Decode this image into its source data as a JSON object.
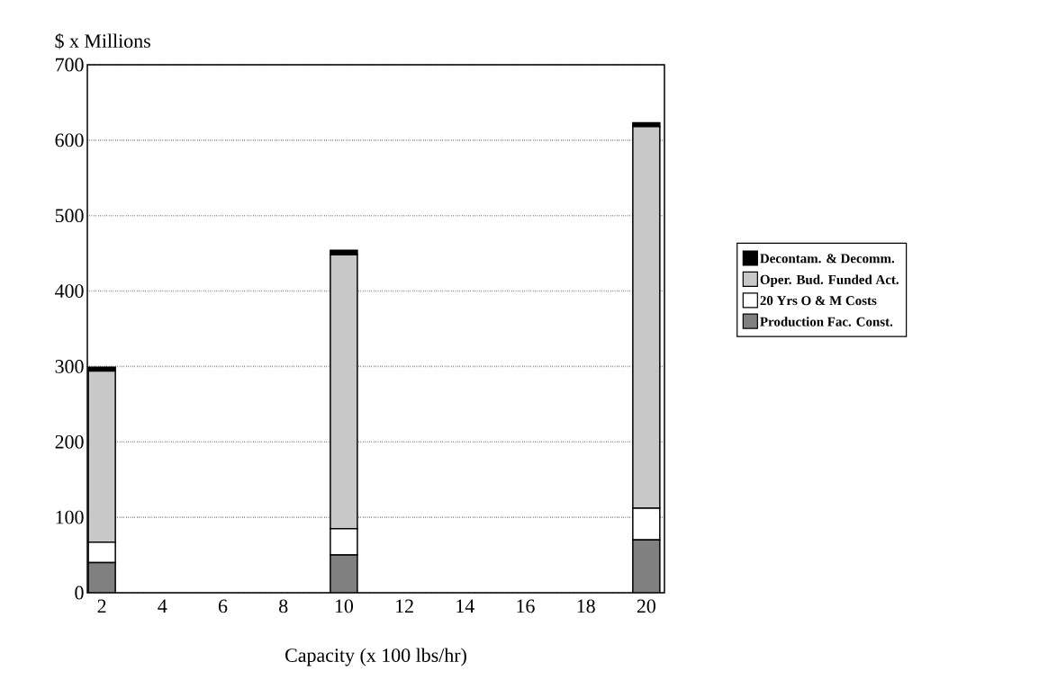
{
  "chart_data": {
    "type": "bar",
    "stacked": true,
    "xlabel": "Capacity (x 100 lbs/hr)",
    "ylabel": "$ x Millions",
    "categories": [
      "2",
      "4",
      "6",
      "8",
      "10",
      "12",
      "14",
      "16",
      "18",
      "20"
    ],
    "series": [
      {
        "name": "Production Fac. Const.",
        "color": "#808080",
        "values": [
          40,
          null,
          null,
          null,
          50,
          null,
          null,
          null,
          null,
          70
        ]
      },
      {
        "name": "20 Yrs O & M Costs",
        "color": "#ffffff",
        "values": [
          27,
          null,
          null,
          null,
          35,
          null,
          null,
          null,
          null,
          42
        ]
      },
      {
        "name": "Oper. Bud. Funded Act.",
        "color": "#c8c8c8",
        "values": [
          227,
          null,
          null,
          null,
          363,
          null,
          null,
          null,
          null,
          506
        ]
      },
      {
        "name": "Decontam. & Decomm.",
        "color": "#000000",
        "values": [
          5,
          null,
          null,
          null,
          6,
          null,
          null,
          null,
          null,
          5
        ]
      }
    ],
    "ylim": [
      0,
      700
    ],
    "yticks": [
      0,
      100,
      200,
      300,
      400,
      500,
      600,
      700
    ],
    "grid": "y",
    "legend": "right"
  }
}
